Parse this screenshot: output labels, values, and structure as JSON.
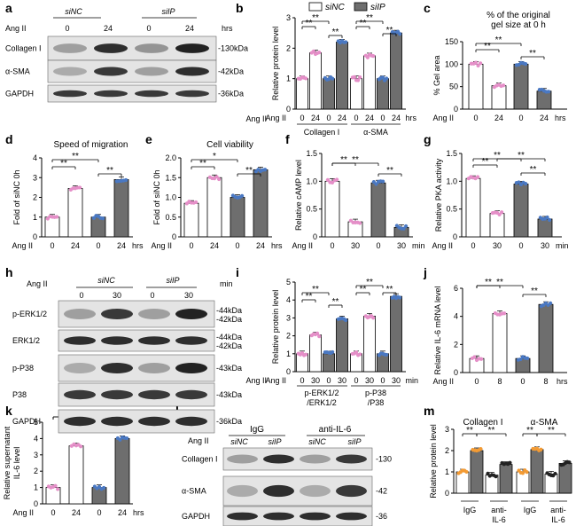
{
  "panels": {
    "a": "a",
    "b": "b",
    "c": "c",
    "d": "d",
    "e": "e",
    "f": "f",
    "g": "g",
    "h": "h",
    "i": "i",
    "j": "j",
    "k": "k",
    "l": "l",
    "m": "m"
  },
  "legend": {
    "a": "siNC",
    "b": "siIP"
  },
  "colors": {
    "white": "#ffffff",
    "gray": "#6e6e6e",
    "pink": "#e58fc8",
    "blue": "#4a78c2",
    "orange": "#f39b34",
    "black": "#222222"
  },
  "blot_a": {
    "agii": "Ang II",
    "hrs": "hrs",
    "groups": [
      "siNC",
      "siIP"
    ],
    "times": [
      "0",
      "24",
      "0",
      "24"
    ],
    "rows": [
      {
        "name": "Collagen I",
        "kda": "-130kDa"
      },
      {
        "name": "α-SMA",
        "kda": "-42kDa"
      },
      {
        "name": "GAPDH",
        "kda": "-36kDa"
      }
    ]
  },
  "blot_h": {
    "agii": "Ang II",
    "unit": "min",
    "groups": [
      "siNC",
      "siIP"
    ],
    "times": [
      "0",
      "30",
      "0",
      "30"
    ],
    "rows": [
      {
        "name": "p-ERK1/2",
        "kda": [
          "-44kDa",
          "-42kDa"
        ]
      },
      {
        "name": "ERK1/2",
        "kda": [
          "-44kDa",
          "-42kDa"
        ]
      },
      {
        "name": "p-P38",
        "kda": [
          "-43kDa"
        ]
      },
      {
        "name": "P38",
        "kda": [
          "-43kDa"
        ]
      },
      {
        "name": "GAPDH",
        "kda": [
          "-36kDa"
        ]
      }
    ]
  },
  "blot_l": {
    "agii": "Ang II",
    "groups": [
      "IgG",
      "anti-IL-6"
    ],
    "sub": [
      "siNC",
      "siIP",
      "siNC",
      "siIP"
    ],
    "rows": [
      {
        "name": "Collagen I",
        "kda": "-130"
      },
      {
        "name": "α-SMA",
        "kda": "-42"
      },
      {
        "name": "GAPDH",
        "kda": "-36"
      }
    ]
  },
  "chart_data": [
    {
      "panel": "b",
      "type": "bar",
      "ylabel": "Relative protein level",
      "ylim": [
        0,
        3
      ],
      "yticks": [
        "0",
        "1",
        "2",
        "3"
      ],
      "xvar": "Ang II",
      "unit": "hrs",
      "groups": [
        "Collagen I",
        "α-SMA"
      ],
      "categories": [
        "0",
        "24",
        "0",
        "24",
        "0",
        "24",
        "0",
        "24"
      ],
      "values": [
        1.0,
        1.85,
        1.0,
        2.2,
        1.0,
        1.75,
        1.0,
        2.5
      ],
      "colors": [
        "white",
        "white",
        "gray",
        "gray",
        "white",
        "white",
        "gray",
        "gray"
      ],
      "sig": [
        "**",
        "**",
        "**",
        "**",
        "**",
        "**"
      ]
    },
    {
      "panel": "c",
      "type": "bar",
      "title": "% of the original",
      "title2": "gel size at 0 h",
      "ylabel": "% Gel area",
      "ylim": [
        0,
        150
      ],
      "yticks": [
        "0",
        "50",
        "100",
        "150"
      ],
      "xvar": "Ang II",
      "unit": "hrs",
      "categories": [
        "0",
        "24",
        "0",
        "24"
      ],
      "values": [
        100,
        52,
        100,
        40
      ],
      "sig": [
        "**",
        "**",
        "**"
      ]
    },
    {
      "panel": "d",
      "type": "bar",
      "title": "Speed of migration",
      "ylabel": "Fold of siNC 0h",
      "ylim": [
        0,
        4
      ],
      "yticks": [
        "0",
        "1",
        "2",
        "3",
        "4"
      ],
      "xvar": "Ang II",
      "unit": "hrs",
      "categories": [
        "0",
        "24",
        "0",
        "24"
      ],
      "values": [
        1.0,
        2.45,
        1.0,
        2.9
      ],
      "sig": [
        "**",
        "**",
        "**"
      ]
    },
    {
      "panel": "e",
      "type": "bar",
      "title": "Cell viability",
      "ylabel": "Fold of siNC 0h",
      "ylim": [
        0,
        2.0
      ],
      "yticks": [
        "0",
        "0.5",
        "1.0",
        "1.5",
        "2.0"
      ],
      "xvar": "Ang II",
      "unit": "hrs",
      "categories": [
        "0",
        "24",
        "0",
        "24"
      ],
      "values": [
        0.85,
        1.5,
        1.0,
        1.7
      ],
      "sig": [
        "**",
        "*",
        "**"
      ]
    },
    {
      "panel": "f",
      "type": "bar",
      "ylabel": "Relative cAMP level",
      "ylim": [
        0,
        1.5
      ],
      "yticks": [
        "0",
        "0.5",
        "1.0",
        "1.5"
      ],
      "xvar": "Ang II",
      "unit": "min",
      "categories": [
        "0",
        "30",
        "0",
        "30"
      ],
      "values": [
        1.0,
        0.27,
        0.97,
        0.17
      ],
      "sig": [
        "**",
        "**",
        "**"
      ]
    },
    {
      "panel": "g",
      "type": "bar",
      "ylabel": "Relative PKA activity",
      "ylim": [
        0,
        1.5
      ],
      "yticks": [
        "0",
        "0.5",
        "1.0",
        "1.5"
      ],
      "xvar": "Ang II",
      "unit": "min",
      "categories": [
        "0",
        "30",
        "0",
        "30"
      ],
      "values": [
        1.05,
        0.42,
        0.95,
        0.32
      ],
      "sig": [
        "**",
        "**",
        "**",
        "**"
      ]
    },
    {
      "panel": "i",
      "type": "bar",
      "ylabel": "Relative protein level",
      "ylim": [
        0,
        5
      ],
      "yticks": [
        "0",
        "1",
        "2",
        "3",
        "4",
        "5"
      ],
      "xvar": "Ang II",
      "unit": "min",
      "groups": [
        "p-ERK1/2",
        "/ERK1/2",
        "p-P38",
        "/P38"
      ],
      "categories": [
        "0",
        "30",
        "0",
        "30",
        "0",
        "30",
        "0",
        "30"
      ],
      "values": [
        1.0,
        2.05,
        1.0,
        2.95,
        1.0,
        3.1,
        1.0,
        4.2
      ],
      "colors": [
        "white",
        "white",
        "gray",
        "gray",
        "white",
        "white",
        "gray",
        "gray"
      ],
      "sig": [
        "**",
        "**",
        "**",
        "**",
        "**",
        "**"
      ]
    },
    {
      "panel": "j",
      "type": "bar",
      "ylabel": "Relative IL-6 mRNA level",
      "ylim": [
        0,
        6
      ],
      "yticks": [
        "0",
        "2",
        "4",
        "6"
      ],
      "xvar": "Ang II",
      "unit": "hrs",
      "categories": [
        "0",
        "8",
        "0",
        "8"
      ],
      "values": [
        1.0,
        4.2,
        1.0,
        4.85
      ],
      "sig": [
        "**",
        "**",
        "**"
      ]
    },
    {
      "panel": "k",
      "type": "bar",
      "ylabel": "Relative supernatant",
      "ylabel2": "IL-6 level",
      "ylim": [
        0,
        5
      ],
      "yticks": [
        "0",
        "1",
        "2",
        "3",
        "4",
        "5"
      ],
      "xvar": "Ang II",
      "unit": "hrs",
      "categories": [
        "0",
        "24",
        "0",
        "24"
      ],
      "values": [
        1.0,
        3.55,
        1.0,
        4.0
      ],
      "sig": [
        "**",
        "**",
        "**"
      ]
    },
    {
      "panel": "m",
      "type": "bar",
      "ylabel": "Relative protein level",
      "ylim": [
        0,
        3
      ],
      "yticks": [
        "0",
        "1",
        "2",
        "3"
      ],
      "groups": [
        "Collagen I",
        "α-SMA"
      ],
      "xgroups": [
        "IgG",
        "anti-IL-6",
        "IgG",
        "anti-IL-6"
      ],
      "values": [
        1.0,
        2.0,
        0.85,
        1.35,
        1.0,
        2.05,
        0.9,
        1.4
      ],
      "colors": [
        "white",
        "gray",
        "white",
        "gray",
        "white",
        "gray",
        "white",
        "gray"
      ],
      "sig": [
        "**",
        "**",
        "**",
        "**"
      ]
    }
  ]
}
